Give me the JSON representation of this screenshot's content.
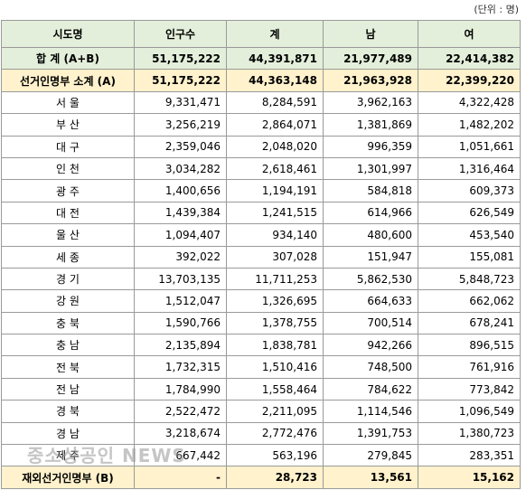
{
  "unit_note": "(단위 : 명)",
  "table": {
    "header": [
      "시도명",
      "인구수",
      "계",
      "남",
      "여"
    ],
    "rows": [
      [
        "합 계 (A+B)",
        "51,175,222",
        "44,391,871",
        "21,977,489",
        "22,414,382"
      ],
      [
        "선거인명부 소계 (A)",
        "51,175,222",
        "44,363,148",
        "21,963,928",
        "22,399,220"
      ],
      [
        "서 울",
        "9,331,471",
        "8,284,591",
        "3,962,163",
        "4,322,428"
      ],
      [
        "부 산",
        "3,256,219",
        "2,864,071",
        "1,381,869",
        "1,482,202"
      ],
      [
        "대 구",
        "2,359,046",
        "2,048,020",
        "996,359",
        "1,051,661"
      ],
      [
        "인 천",
        "3,034,282",
        "2,618,461",
        "1,301,997",
        "1,316,464"
      ],
      [
        "광 주",
        "1,400,656",
        "1,194,191",
        "584,818",
        "609,373"
      ],
      [
        "대 전",
        "1,439,384",
        "1,241,515",
        "614,966",
        "626,549"
      ],
      [
        "울 산",
        "1,094,407",
        "934,140",
        "480,600",
        "453,540"
      ],
      [
        "세 종",
        "392,022",
        "307,028",
        "151,947",
        "155,081"
      ],
      [
        "경 기",
        "13,703,135",
        "11,711,253",
        "5,862,530",
        "5,848,723"
      ],
      [
        "강 원",
        "1,512,047",
        "1,326,695",
        "664,633",
        "662,062"
      ],
      [
        "충 북",
        "1,590,766",
        "1,378,755",
        "700,514",
        "678,241"
      ],
      [
        "충 남",
        "2,135,894",
        "1,838,781",
        "942,266",
        "896,515"
      ],
      [
        "전 북",
        "1,732,315",
        "1,510,416",
        "748,500",
        "761,916"
      ],
      [
        "전 남",
        "1,784,990",
        "1,558,464",
        "784,622",
        "773,842"
      ],
      [
        "경 북",
        "2,522,472",
        "2,211,095",
        "1,114,546",
        "1,096,549"
      ],
      [
        "경 남",
        "3,218,674",
        "2,772,476",
        "1,391,753",
        "1,380,723"
      ],
      [
        "제 주",
        "667,442",
        "563,196",
        "279,845",
        "283,351"
      ],
      [
        "재외선거인명부 (B)",
        "-",
        "28,723",
        "13,561",
        "15,162"
      ]
    ]
  },
  "watermark": "중소상공인 NEWS"
}
